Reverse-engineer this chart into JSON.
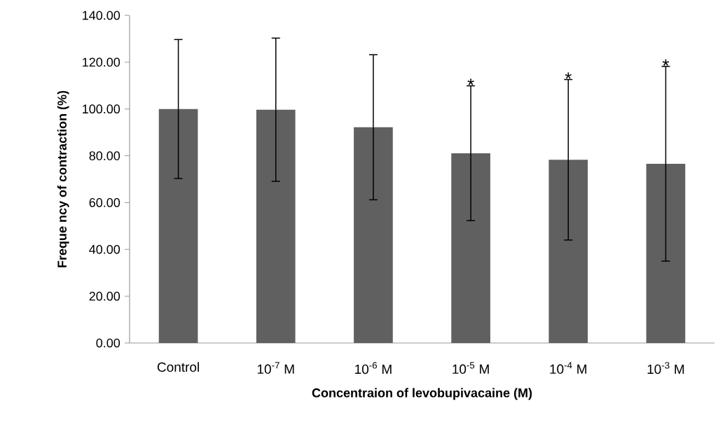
{
  "chart_data": {
    "type": "bar",
    "xlabel": "Concentraion of levobupivacaine (M)",
    "ylabel": "Freque ncy of contraction (%)",
    "categories": [
      "Control",
      "10$^{-7}$ M",
      "10$^{-6}$ M",
      "10$^{-5}$ M",
      "10$^{-4}$ M",
      "10$^{-3}$ M"
    ],
    "values": [
      100,
      99.7,
      92.2,
      81.1,
      78.3,
      76.6
    ],
    "errors": [
      29.7,
      30.6,
      31,
      28.8,
      34.3,
      41.6
    ],
    "color": "#606060",
    "ylim": [
      0,
      140
    ],
    "yticks": [
      {
        "value": 0,
        "label": "0.00"
      },
      {
        "value": 20,
        "label": "20.00"
      },
      {
        "value": 40,
        "label": "40.00"
      },
      {
        "value": 60,
        "label": "60.00"
      },
      {
        "value": 80,
        "label": "80.00"
      },
      {
        "value": 100,
        "label": "100.00"
      },
      {
        "value": 120,
        "label": "120.00"
      },
      {
        "value": 140,
        "label": "140.00"
      }
    ],
    "annotations": [
      {
        "text": "*",
        "x": "10$^{-5}$ M",
        "y": 109.9
      },
      {
        "text": "*",
        "x": "10$^{-4}$ M",
        "y": 112.6
      },
      {
        "text": "*",
        "x": "10$^{-3}$ M",
        "y": 118.2
      }
    ],
    "grid": false
  }
}
